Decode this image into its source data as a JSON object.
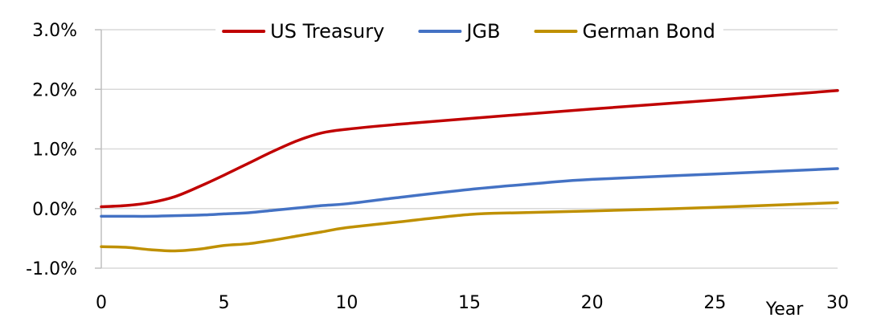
{
  "chart_data": {
    "type": "line",
    "xlabel": "Year",
    "ylabel": "",
    "xlim": [
      0,
      30
    ],
    "ylim": [
      -1.0,
      3.0
    ],
    "x_ticks": [
      0,
      5,
      10,
      15,
      20,
      25,
      30
    ],
    "x_tick_labels": [
      "0",
      "5",
      "10",
      "15",
      "20",
      "25",
      "30"
    ],
    "y_ticks": [
      -1.0,
      0.0,
      1.0,
      2.0,
      3.0
    ],
    "y_tick_labels": [
      "-1.0%",
      "0.0%",
      "1.0%",
      "2.0%",
      "3.0%"
    ],
    "grid": "horizontal",
    "legend_position": "top",
    "series": [
      {
        "name": "US Treasury",
        "color": "#C00000",
        "points": [
          [
            0,
            0.03
          ],
          [
            1,
            0.05
          ],
          [
            2,
            0.1
          ],
          [
            3,
            0.2
          ],
          [
            4,
            0.37
          ],
          [
            5,
            0.56
          ],
          [
            6,
            0.76
          ],
          [
            7,
            0.96
          ],
          [
            8,
            1.14
          ],
          [
            9,
            1.27
          ],
          [
            10,
            1.33
          ],
          [
            12,
            1.41
          ],
          [
            15,
            1.51
          ],
          [
            20,
            1.67
          ],
          [
            25,
            1.82
          ],
          [
            30,
            1.98
          ]
        ]
      },
      {
        "name": "JGB",
        "color": "#4472C4",
        "points": [
          [
            0,
            -0.13
          ],
          [
            1,
            -0.13
          ],
          [
            2,
            -0.13
          ],
          [
            3,
            -0.12
          ],
          [
            4,
            -0.11
          ],
          [
            5,
            -0.09
          ],
          [
            6,
            -0.07
          ],
          [
            7,
            -0.03
          ],
          [
            8,
            0.01
          ],
          [
            9,
            0.05
          ],
          [
            10,
            0.08
          ],
          [
            12,
            0.18
          ],
          [
            15,
            0.32
          ],
          [
            18,
            0.43
          ],
          [
            20,
            0.49
          ],
          [
            25,
            0.58
          ],
          [
            30,
            0.67
          ]
        ]
      },
      {
        "name": "German Bond",
        "color": "#BF9000",
        "points": [
          [
            0,
            -0.64
          ],
          [
            1,
            -0.65
          ],
          [
            2,
            -0.69
          ],
          [
            3,
            -0.71
          ],
          [
            4,
            -0.68
          ],
          [
            5,
            -0.62
          ],
          [
            6,
            -0.59
          ],
          [
            7,
            -0.53
          ],
          [
            8,
            -0.46
          ],
          [
            9,
            -0.39
          ],
          [
            10,
            -0.32
          ],
          [
            12,
            -0.23
          ],
          [
            15,
            -0.1
          ],
          [
            17,
            -0.07
          ],
          [
            20,
            -0.04
          ],
          [
            25,
            0.02
          ],
          [
            30,
            0.1
          ]
        ]
      }
    ]
  }
}
